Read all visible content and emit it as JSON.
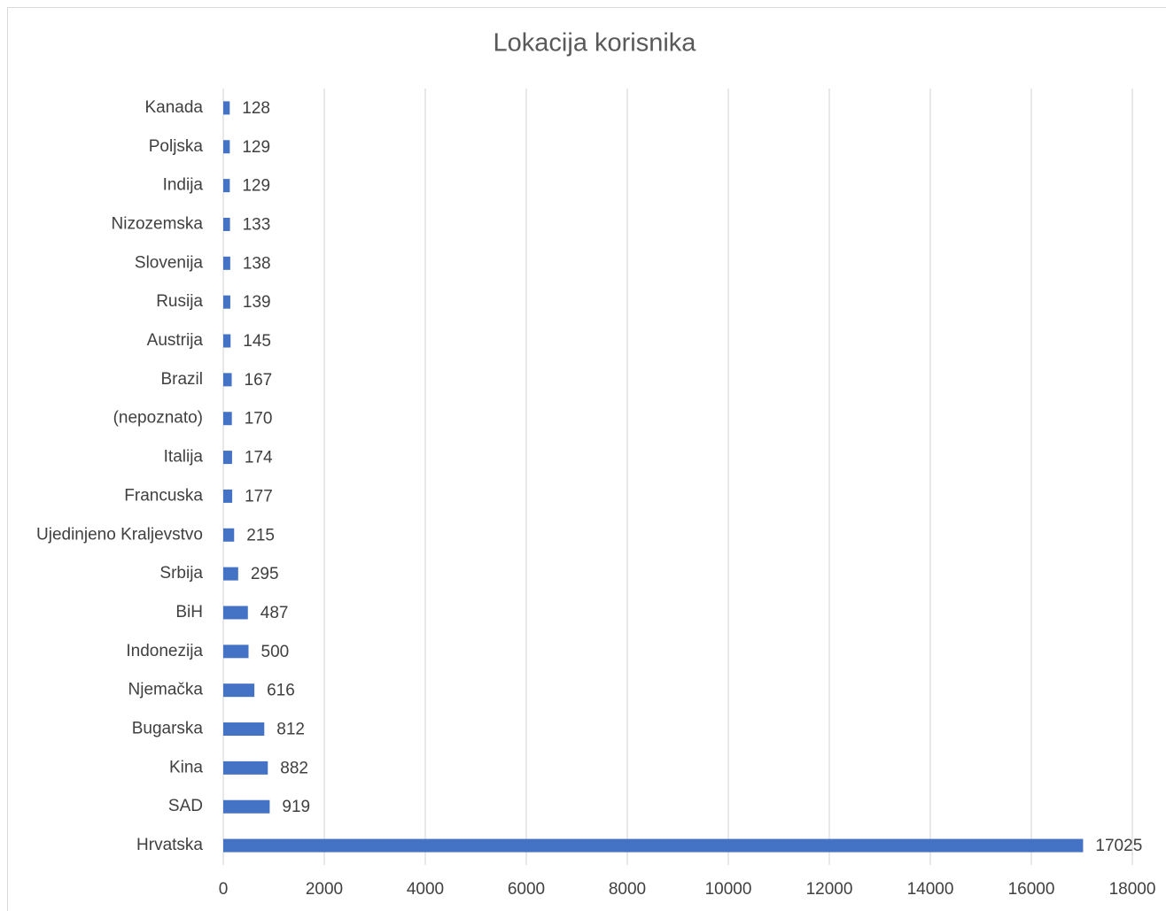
{
  "chart_data": {
    "type": "barh",
    "title": "Lokacija korisnika",
    "categories": [
      "Kanada",
      "Poljska",
      "Indija",
      "Nizozemska",
      "Slovenija",
      "Rusija",
      "Austrija",
      "Brazil",
      "(nepoznato)",
      "Italija",
      "Francuska",
      "Ujedinjeno Kraljevstvo",
      "Srbija",
      "BiH",
      "Indonezija",
      "Njemačka",
      "Bugarska",
      "Kina",
      "SAD",
      "Hrvatska"
    ],
    "values": [
      128,
      129,
      129,
      133,
      138,
      139,
      145,
      167,
      170,
      174,
      177,
      215,
      295,
      487,
      500,
      616,
      812,
      882,
      919,
      17025
    ],
    "color": "#4472c4",
    "xlim": [
      0,
      18000
    ],
    "xticks": [
      0,
      2000,
      4000,
      6000,
      8000,
      10000,
      12000,
      14000,
      16000,
      18000
    ],
    "grid": true
  }
}
